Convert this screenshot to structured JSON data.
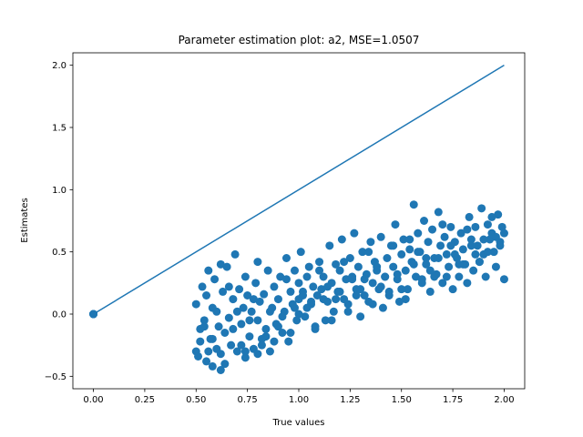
{
  "chart_data": {
    "type": "scatter",
    "title": "Parameter estimation plot: a2, MSE=1.0507",
    "xlabel": "True values",
    "ylabel": "Estimates",
    "xlim": [
      -0.1,
      2.1
    ],
    "ylim": [
      -0.6,
      2.1
    ],
    "grid": false,
    "xticks": [
      0.0,
      0.25,
      0.5,
      0.75,
      1.0,
      1.25,
      1.5,
      1.75,
      2.0
    ],
    "xtick_labels": [
      "0.00",
      "0.25",
      "0.50",
      "0.75",
      "1.00",
      "1.25",
      "1.50",
      "1.75",
      "2.00"
    ],
    "yticks": [
      -0.5,
      0.0,
      0.5,
      1.0,
      1.5,
      2.0
    ],
    "ytick_labels": [
      "−0.5",
      "0.0",
      "0.5",
      "1.0",
      "1.5",
      "2.0"
    ],
    "colors": {
      "points": "#1f77b4",
      "line": "#1f77b4"
    },
    "line": {
      "x": [
        0.0,
        2.0
      ],
      "y": [
        0.0,
        2.0
      ]
    },
    "points": {
      "x": [
        0.0,
        0.0,
        0.0,
        0.0,
        0.0,
        0.5,
        0.5,
        0.51,
        0.52,
        0.53,
        0.54,
        0.55,
        0.55,
        0.56,
        0.57,
        0.58,
        0.58,
        0.59,
        0.6,
        0.61,
        0.62,
        0.62,
        0.63,
        0.64,
        0.65,
        0.66,
        0.67,
        0.68,
        0.69,
        0.7,
        0.71,
        0.72,
        0.73,
        0.74,
        0.74,
        0.75,
        0.76,
        0.77,
        0.78,
        0.79,
        0.8,
        0.8,
        0.81,
        0.82,
        0.83,
        0.84,
        0.85,
        0.86,
        0.87,
        0.88,
        0.89,
        0.9,
        0.91,
        0.92,
        0.93,
        0.94,
        0.95,
        0.96,
        0.97,
        0.98,
        0.99,
        1.0,
        1.0,
        1.01,
        1.02,
        1.03,
        1.04,
        1.05,
        1.06,
        1.07,
        1.08,
        1.09,
        1.1,
        1.11,
        1.12,
        1.13,
        1.14,
        1.15,
        1.16,
        1.17,
        1.18,
        1.19,
        1.2,
        1.21,
        1.22,
        1.23,
        1.24,
        1.25,
        1.26,
        1.27,
        1.28,
        1.29,
        1.3,
        1.31,
        1.32,
        1.33,
        1.34,
        1.35,
        1.36,
        1.37,
        1.38,
        1.39,
        1.4,
        1.41,
        1.42,
        1.43,
        1.44,
        1.45,
        1.46,
        1.47,
        1.48,
        1.49,
        1.5,
        1.51,
        1.52,
        1.53,
        1.54,
        1.55,
        1.56,
        1.57,
        1.58,
        1.59,
        1.6,
        1.61,
        1.62,
        1.63,
        1.64,
        1.65,
        1.66,
        1.67,
        1.68,
        1.69,
        1.7,
        1.71,
        1.72,
        1.73,
        1.74,
        1.75,
        1.76,
        1.77,
        1.78,
        1.79,
        1.8,
        1.81,
        1.82,
        1.83,
        1.84,
        1.85,
        1.86,
        1.87,
        1.88,
        1.89,
        1.9,
        1.91,
        1.92,
        1.93,
        1.94,
        1.95,
        1.96,
        1.97,
        1.98,
        1.99,
        2.0,
        0.52,
        0.56,
        0.6,
        0.64,
        0.68,
        0.72,
        0.76,
        0.8,
        0.84,
        0.88,
        0.92,
        0.96,
        1.0,
        1.04,
        1.08,
        1.12,
        1.16,
        1.2,
        1.24,
        1.28,
        1.32,
        1.36,
        1.4,
        1.44,
        1.48,
        1.52,
        1.56,
        1.6,
        1.64,
        1.68,
        1.72,
        1.76,
        1.8,
        1.84,
        1.88,
        1.92,
        1.96,
        2.0,
        0.54,
        0.58,
        0.62,
        0.66,
        0.7,
        0.74,
        0.78,
        0.82,
        0.86,
        0.9,
        0.94,
        0.98,
        1.02,
        1.06,
        1.1,
        1.14,
        1.18,
        1.22,
        1.26,
        1.3,
        1.34,
        1.38,
        1.42,
        1.46,
        1.5,
        1.54,
        1.58,
        1.62,
        1.66,
        1.7,
        1.74,
        1.78,
        1.82,
        1.86,
        1.9,
        1.94,
        1.98
      ],
      "y": [
        0.0,
        0.0,
        0.0,
        0.0,
        0.0,
        -0.3,
        0.08,
        -0.34,
        -0.12,
        0.22,
        -0.05,
        0.15,
        -0.38,
        0.35,
        -0.2,
        0.05,
        -0.42,
        0.28,
        -0.28,
        -0.1,
        0.4,
        -0.45,
        0.18,
        -0.15,
        0.38,
        -0.03,
        -0.25,
        0.12,
        0.48,
        -0.3,
        0.2,
        -0.08,
        0.05,
        -0.35,
        0.3,
        0.15,
        -0.18,
        0.02,
        -0.28,
        0.25,
        -0.05,
        0.42,
        0.1,
        -0.2,
        0.16,
        -0.12,
        0.35,
        -0.3,
        0.05,
        0.22,
        -0.08,
        0.12,
        0.3,
        -0.15,
        0.02,
        0.45,
        -0.22,
        0.18,
        0.08,
        0.35,
        -0.05,
        0.25,
        0.12,
        0.5,
        0.18,
        -0.02,
        0.3,
        0.38,
        0.08,
        0.22,
        -0.1,
        0.15,
        0.42,
        0.2,
        0.3,
        -0.05,
        0.1,
        0.55,
        0.25,
        0.02,
        0.4,
        0.18,
        0.35,
        0.6,
        0.12,
        0.28,
        0.08,
        0.45,
        0.3,
        0.65,
        0.2,
        0.38,
        -0.02,
        0.5,
        0.15,
        0.32,
        0.1,
        0.58,
        0.25,
        0.42,
        0.35,
        0.2,
        0.62,
        0.05,
        0.3,
        0.45,
        0.15,
        0.55,
        0.38,
        0.72,
        0.28,
        0.1,
        0.48,
        0.6,
        0.35,
        0.2,
        0.52,
        0.42,
        0.88,
        0.3,
        0.65,
        0.5,
        0.25,
        0.75,
        0.4,
        0.58,
        0.18,
        0.68,
        0.45,
        0.32,
        0.82,
        0.55,
        0.25,
        0.62,
        0.48,
        0.38,
        0.7,
        0.2,
        0.58,
        0.45,
        0.3,
        0.65,
        0.52,
        0.4,
        0.25,
        0.78,
        0.6,
        0.35,
        0.7,
        0.55,
        0.42,
        0.85,
        0.48,
        0.3,
        0.72,
        0.6,
        0.65,
        0.5,
        0.38,
        0.8,
        0.58,
        0.7,
        0.28,
        -0.22,
        -0.3,
        0.02,
        -0.4,
        -0.12,
        -0.25,
        -0.05,
        -0.32,
        -0.18,
        -0.22,
        -0.02,
        -0.15,
        0.0,
        0.05,
        -0.12,
        0.12,
        -0.05,
        0.18,
        0.02,
        0.15,
        0.28,
        0.08,
        0.22,
        0.18,
        0.32,
        0.12,
        0.4,
        0.28,
        0.35,
        0.45,
        0.3,
        0.48,
        0.4,
        0.55,
        0.42,
        0.5,
        0.62,
        0.65,
        -0.1,
        -0.2,
        -0.32,
        0.22,
        0.02,
        -0.3,
        0.12,
        -0.25,
        0.02,
        -0.1,
        0.28,
        0.05,
        0.15,
        0.1,
        0.35,
        0.22,
        0.12,
        0.42,
        0.28,
        0.2,
        0.5,
        0.38,
        0.3,
        0.55,
        0.2,
        0.6,
        0.5,
        0.45,
        0.3,
        0.72,
        0.55,
        0.4,
        0.68,
        0.48,
        0.6,
        0.78,
        0.55
      ]
    }
  }
}
